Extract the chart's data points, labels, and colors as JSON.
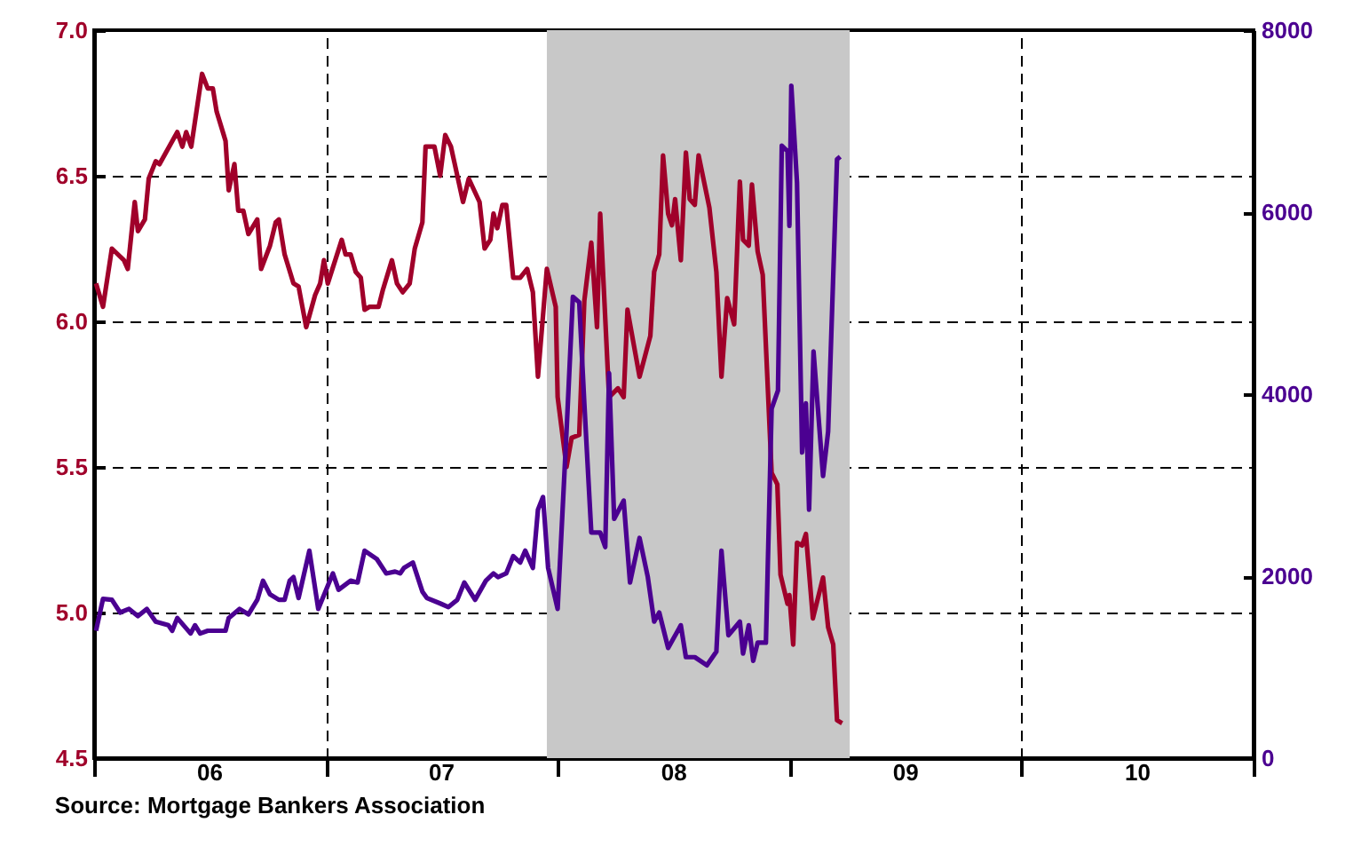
{
  "chart_data": {
    "type": "line",
    "annotations": [
      "Source:  Mortgage Bankers Association"
    ],
    "xlim": [
      "2006-01-01",
      "2011-01-01"
    ],
    "xticks": [
      {
        "value": "2006-01-01",
        "label": null
      },
      {
        "value": "2006-07-01",
        "label": "06"
      },
      {
        "value": "2007-01-01",
        "label": null
      },
      {
        "value": "2007-07-01",
        "label": "07"
      },
      {
        "value": "2008-01-01",
        "label": null
      },
      {
        "value": "2008-07-01",
        "label": "08"
      },
      {
        "value": "2009-01-01",
        "label": null
      },
      {
        "value": "2009-07-01",
        "label": "09"
      },
      {
        "value": "2010-01-01",
        "label": null
      },
      {
        "value": "2010-07-01",
        "label": "10"
      },
      {
        "value": "2011-01-01",
        "label": null
      }
    ],
    "ylim": [
      4.5,
      7.0
    ],
    "yticks": [
      4.5,
      {
        "value": 5,
        "label": "5.0"
      },
      5.5,
      {
        "value": 6,
        "label": "6.0"
      },
      6.5,
      {
        "value": 7,
        "label": "7.0"
      }
    ],
    "y2lim": [
      0,
      8000
    ],
    "y2ticks": [
      0,
      2000,
      4000,
      6000,
      8000
    ],
    "grid": true,
    "line_style": "solid",
    "bands": [
      {
        "axis": "x",
        "from": "2007-12-15",
        "to": "2009-04-05",
        "color": "#c8c8c8"
      }
    ],
    "series": [
      {
        "color": "#a0002a",
        "x": [
          "2006-01-04",
          "2006-01-15",
          "2006-01-29",
          "2006-02-17",
          "2006-02-23",
          "2006-03-06",
          "2006-03-11",
          "2006-03-22",
          "2006-03-28",
          "2006-04-08",
          "2006-04-14",
          "2006-05-12",
          "2006-05-20",
          "2006-05-26",
          "2006-06-03",
          "2006-06-20",
          "2006-06-29",
          "2006-07-07",
          "2006-07-13",
          "2006-07-27",
          "2006-08-01",
          "2006-08-10",
          "2006-08-16",
          "2006-08-24",
          "2006-09-01",
          "2006-09-15",
          "2006-09-21",
          "2006-10-05",
          "2006-10-14",
          "2006-10-19",
          "2006-10-28",
          "2006-11-11",
          "2006-11-19",
          "2006-12-01",
          "2006-12-15",
          "2006-12-23",
          "2006-12-29",
          "2007-01-04",
          "2007-01-26",
          "2007-02-01",
          "2007-02-09",
          "2007-02-17",
          "2007-02-25",
          "2007-03-03",
          "2007-03-11",
          "2007-03-25",
          "2007-04-01",
          "2007-04-15",
          "2007-04-23",
          "2007-05-02",
          "2007-05-13",
          "2007-05-21",
          "2007-06-02",
          "2007-06-07",
          "2007-06-21",
          "2007-06-30",
          "2007-07-08",
          "2007-07-17",
          "2007-08-05",
          "2007-08-14",
          "2007-08-31",
          "2007-09-08",
          "2007-09-17",
          "2007-09-22",
          "2007-09-28",
          "2007-10-06",
          "2007-10-12",
          "2007-10-23",
          "2007-11-03",
          "2007-11-14",
          "2007-11-23",
          "2007-12-01",
          "2007-12-15",
          "2007-12-29",
          "2008-01-01",
          "2008-01-15",
          "2008-01-23",
          "2008-02-04",
          "2008-02-12",
          "2008-02-23",
          "2008-03-03",
          "2008-03-08",
          "2008-03-22",
          "2008-04-05",
          "2008-04-14",
          "2008-04-20",
          "2008-05-09",
          "2008-05-26",
          "2008-06-01",
          "2008-06-09",
          "2008-06-15",
          "2008-06-23",
          "2008-06-29",
          "2008-07-04",
          "2008-07-13",
          "2008-07-21",
          "2008-07-27",
          "2008-08-04",
          "2008-08-10",
          "2008-08-27",
          "2008-09-07",
          "2008-09-15",
          "2008-09-24",
          "2008-10-05",
          "2008-10-14",
          "2008-10-19",
          "2008-10-28",
          "2008-11-02",
          "2008-11-11",
          "2008-11-19",
          "2008-12-03",
          "2008-12-12",
          "2008-12-17",
          "2008-12-28",
          "2008-12-31",
          "2009-01-06",
          "2009-01-12",
          "2009-01-20",
          "2009-01-26",
          "2009-02-06",
          "2009-02-22",
          "2009-03-02",
          "2009-03-10",
          "2009-03-16",
          "2009-03-24"
        ],
        "values": [
          6.13,
          6.05,
          6.25,
          6.21,
          6.18,
          6.41,
          6.31,
          6.35,
          6.49,
          6.55,
          6.54,
          6.65,
          6.6,
          6.65,
          6.6,
          6.85,
          6.8,
          6.8,
          6.72,
          6.62,
          6.45,
          6.54,
          6.38,
          6.38,
          6.3,
          6.35,
          6.18,
          6.26,
          6.34,
          6.35,
          6.23,
          6.13,
          6.12,
          5.98,
          6.09,
          6.13,
          6.21,
          6.13,
          6.28,
          6.23,
          6.23,
          6.17,
          6.15,
          6.04,
          6.05,
          6.05,
          6.11,
          6.21,
          6.13,
          6.1,
          6.13,
          6.25,
          6.34,
          6.6,
          6.6,
          6.5,
          6.64,
          6.6,
          6.41,
          6.49,
          6.41,
          6.25,
          6.28,
          6.37,
          6.32,
          6.4,
          6.4,
          6.15,
          6.15,
          6.18,
          6.1,
          5.81,
          6.18,
          6.05,
          5.74,
          5.5,
          5.6,
          5.61,
          6.07,
          6.27,
          5.98,
          6.37,
          5.74,
          5.77,
          5.74,
          6.04,
          5.81,
          5.95,
          6.17,
          6.23,
          6.57,
          6.37,
          6.33,
          6.42,
          6.21,
          6.58,
          6.42,
          6.4,
          6.57,
          6.39,
          6.17,
          5.81,
          6.08,
          5.99,
          6.48,
          6.28,
          6.26,
          6.47,
          6.24,
          6.16,
          5.48,
          5.44,
          5.13,
          5.03,
          5.06,
          4.89,
          5.24,
          5.23,
          5.27,
          4.98,
          5.12,
          4.95,
          4.89,
          4.63,
          4.62
        ]
      },
      {
        "color": "#4b0091",
        "axis": "y2",
        "x": [
          "2006-01-04",
          "2006-01-15",
          "2006-01-29",
          "2006-02-11",
          "2006-02-25",
          "2006-03-11",
          "2006-03-25",
          "2006-04-08",
          "2006-04-28",
          "2006-05-04",
          "2006-05-12",
          "2006-06-02",
          "2006-06-09",
          "2006-06-17",
          "2006-06-29",
          "2006-07-27",
          "2006-08-01",
          "2006-08-18",
          "2006-09-01",
          "2006-09-15",
          "2006-09-24",
          "2006-10-05",
          "2006-10-19",
          "2006-10-28",
          "2006-11-05",
          "2006-11-11",
          "2006-11-19",
          "2006-12-06",
          "2006-12-20",
          "2007-01-12",
          "2007-01-21",
          "2007-02-09",
          "2007-02-20",
          "2007-03-03",
          "2007-03-22",
          "2007-04-06",
          "2007-04-20",
          "2007-04-28",
          "2007-05-04",
          "2007-05-18",
          "2007-06-02",
          "2007-06-09",
          "2007-06-30",
          "2007-07-13",
          "2007-07-27",
          "2007-08-07",
          "2007-08-24",
          "2007-09-10",
          "2007-09-22",
          "2007-09-29",
          "2007-10-12",
          "2007-10-23",
          "2007-11-03",
          "2007-11-11",
          "2007-11-23",
          "2007-12-01",
          "2007-12-09",
          "2007-12-17",
          "2008-01-01",
          "2008-01-15",
          "2008-01-25",
          "2008-02-04",
          "2008-02-12",
          "2008-02-23",
          "2008-03-08",
          "2008-03-16",
          "2008-03-22",
          "2008-03-30",
          "2008-04-14",
          "2008-04-24",
          "2008-05-09",
          "2008-05-22",
          "2008-06-01",
          "2008-06-09",
          "2008-06-23",
          "2008-07-13",
          "2008-07-21",
          "2008-08-04",
          "2008-08-23",
          "2008-09-07",
          "2008-09-15",
          "2008-09-26",
          "2008-10-14",
          "2008-10-19",
          "2008-10-28",
          "2008-11-04",
          "2008-11-11",
          "2008-11-24",
          "2008-12-03",
          "2008-12-13",
          "2008-12-19",
          "2008-12-28",
          "2008-12-31",
          "2009-01-03",
          "2009-01-12",
          "2009-01-20",
          "2009-01-26",
          "2009-01-31",
          "2009-02-07",
          "2009-02-22",
          "2009-03-02",
          "2009-03-16",
          "2009-03-21"
        ],
        "values": [
          1400,
          1750,
          1740,
          1600,
          1640,
          1560,
          1640,
          1500,
          1460,
          1400,
          1540,
          1370,
          1460,
          1370,
          1400,
          1400,
          1540,
          1640,
          1580,
          1740,
          1950,
          1800,
          1740,
          1740,
          1950,
          1990,
          1760,
          2280,
          1640,
          2030,
          1850,
          1950,
          1930,
          2280,
          2190,
          2030,
          2050,
          2030,
          2090,
          2150,
          1830,
          1760,
          1700,
          1660,
          1740,
          1930,
          1740,
          1950,
          2030,
          1990,
          2030,
          2220,
          2150,
          2280,
          2090,
          2730,
          2870,
          2090,
          1640,
          3590,
          5070,
          5010,
          3900,
          2480,
          2480,
          2320,
          4230,
          2630,
          2830,
          1930,
          2420,
          1990,
          1500,
          1600,
          1210,
          1460,
          1110,
          1110,
          1020,
          1170,
          2280,
          1350,
          1500,
          1150,
          1460,
          1070,
          1270,
          1270,
          3840,
          4040,
          6730,
          6670,
          5850,
          7390,
          6320,
          3360,
          3900,
          2730,
          4470,
          3100,
          3590,
          6580,
          6610
        ]
      }
    ]
  }
}
